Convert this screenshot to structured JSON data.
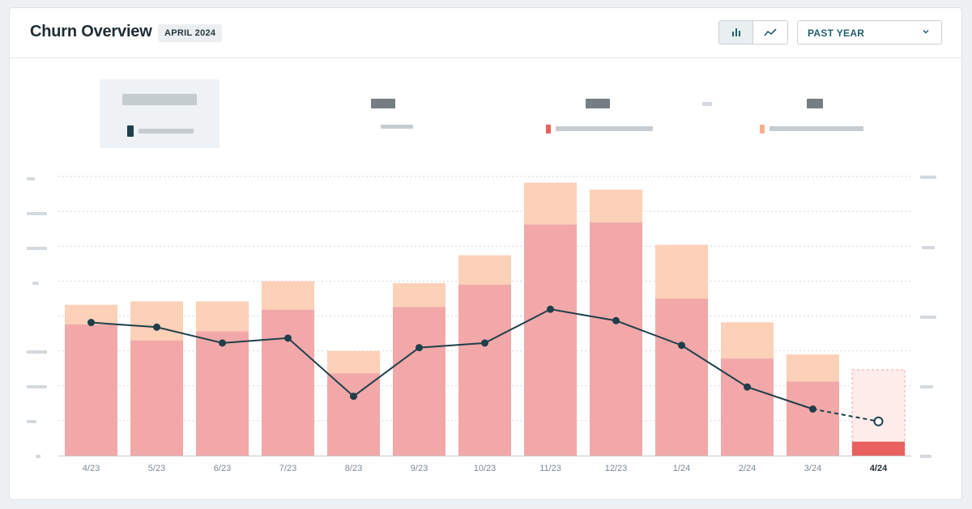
{
  "header": {
    "title": "Churn Overview",
    "period_badge": "APRIL 2024",
    "view_toggle": [
      {
        "icon": "bar-chart-icon",
        "active": true
      },
      {
        "icon": "line-chart-icon",
        "active": false
      }
    ],
    "range_select": {
      "value": "PAST YEAR",
      "icon": "chevron-down-icon"
    }
  },
  "colors": {
    "bar_base": "#f2a8a8",
    "bar_top": "#fdd0b8",
    "current_bar": "#e96060",
    "current_bg": "#fdecea",
    "line": "#1f3f4a",
    "accent": "#23606d"
  },
  "chart_data": {
    "type": "bar",
    "categories": [
      "4/23",
      "5/23",
      "6/23",
      "7/23",
      "8/23",
      "9/23",
      "10/23",
      "11/23",
      "12/23",
      "1/24",
      "2/24",
      "3/24",
      "4/24"
    ],
    "highlight_category": "4/24",
    "series": [
      {
        "role": "bar-base",
        "values": [
          18.8,
          16.5,
          17.8,
          20.9,
          11.8,
          21.3,
          24.5,
          33.1,
          33.4,
          22.5,
          13.9,
          10.6,
          2.0
        ]
      },
      {
        "role": "bar-top",
        "values": [
          2.8,
          5.6,
          4.3,
          4.1,
          3.2,
          3.4,
          4.2,
          6.0,
          4.7,
          7.7,
          5.2,
          3.9,
          0
        ]
      },
      {
        "role": "line",
        "values": [
          5.72,
          5.52,
          4.84,
          5.05,
          2.55,
          4.64,
          4.84,
          6.29,
          5.8,
          4.74,
          2.95,
          2.0,
          1.47
        ]
      }
    ],
    "partial_period": {
      "category": "4/24",
      "projected_total": 12.3
    },
    "left_axis_range": [
      0,
      40
    ],
    "right_axis_range": [
      0,
      12
    ],
    "legend_placement": "top",
    "grid": true
  }
}
